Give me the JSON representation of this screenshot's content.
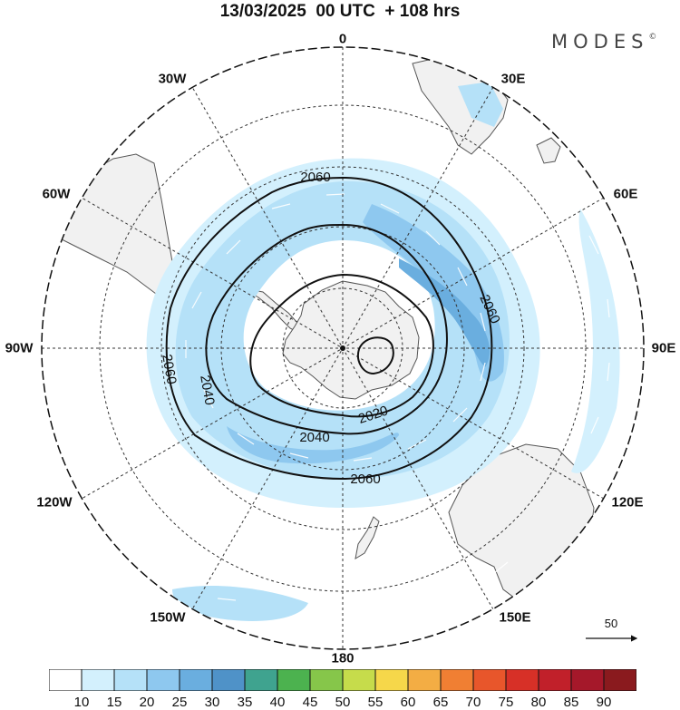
{
  "title": "13/03/2025  00 UTC  + 108 hrs",
  "brand": {
    "name": "MODES",
    "mark": "©"
  },
  "longitude_labels": {
    "lon_0": "0",
    "lon_30e": "30E",
    "lon_60e": "60E",
    "lon_90e": "90E",
    "lon_120e": "120E",
    "lon_150e": "150E",
    "lon_180": "180",
    "lon_150w": "150W",
    "lon_120w": "120W",
    "lon_90w": "90W",
    "lon_60w": "60W",
    "lon_30w": "30W"
  },
  "contours": {
    "label_2060": "2060",
    "label_2040": "2040",
    "label_2020": "2020"
  },
  "reference_vector": {
    "value": "50"
  },
  "colorbar": {
    "ticks": [
      "10",
      "15",
      "20",
      "25",
      "30",
      "35",
      "40",
      "45",
      "50",
      "55",
      "60",
      "65",
      "70",
      "75",
      "80",
      "85",
      "90"
    ],
    "colors": [
      "#ffffff",
      "#d3f0fd",
      "#b5e1f8",
      "#8ec8ef",
      "#6aaedf",
      "#4f92c8",
      "#3fa38f",
      "#4cb24f",
      "#86c64a",
      "#c6dc4b",
      "#f6d74a",
      "#f3ad44",
      "#f07f33",
      "#e8562b",
      "#d73027",
      "#c1202a",
      "#a5182a",
      "#8a1a1e"
    ],
    "colormap": "wind speed shading"
  },
  "projection": "south-polar-stereographic",
  "colors": {
    "land": "#f1f1f1",
    "coast": "#555555",
    "grid": "#333333"
  }
}
